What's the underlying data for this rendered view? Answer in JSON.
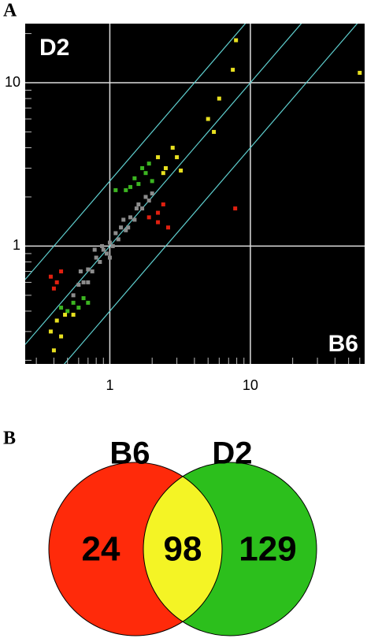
{
  "chart_data": [
    {
      "type": "scatter",
      "panel_label": "A",
      "log_x": true,
      "log_y": true,
      "grid": true,
      "xlim": [
        0.25,
        65
      ],
      "ylim": [
        0.19,
        23
      ],
      "xticks": [
        1,
        10
      ],
      "yticks": [
        1,
        10
      ],
      "xminorticks": [
        0.3,
        0.4,
        0.5,
        0.6,
        0.7,
        0.8,
        0.9,
        2,
        3,
        4,
        5,
        6,
        7,
        8,
        9,
        20,
        30,
        40,
        50,
        60
      ],
      "yminorticks": [
        0.2,
        0.3,
        0.4,
        0.5,
        0.6,
        0.7,
        0.8,
        0.9,
        2,
        3,
        4,
        5,
        6,
        7,
        8,
        9,
        20
      ],
      "ref_lines": [
        0.4,
        1,
        2.5
      ],
      "ref_line_color": "#5fd0d0",
      "corner_labels": [
        "D2",
        "B6"
      ],
      "series": [
        {
          "color": "#8c8c8c",
          "x": [
            0.55,
            0.6,
            0.65,
            0.7,
            0.75,
            0.8,
            0.85,
            0.9,
            0.95,
            1.0,
            1.05,
            1.1,
            1.15,
            1.2,
            1.3,
            1.4,
            1.5,
            1.6,
            1.7,
            1.8,
            1.9,
            2.0,
            0.7,
            1.0,
            1.25,
            0.62,
            0.88,
            1.35,
            1.55,
            0.78
          ],
          "y": [
            0.5,
            0.58,
            0.6,
            0.72,
            0.7,
            0.85,
            0.8,
            0.95,
            0.9,
            1.05,
            1.0,
            1.2,
            1.1,
            1.3,
            1.25,
            1.5,
            1.45,
            1.8,
            1.7,
            2.0,
            1.9,
            2.1,
            0.6,
            0.85,
            1.45,
            0.7,
            1.0,
            1.3,
            1.7,
            0.95
          ]
        },
        {
          "color": "#3cb521",
          "x": [
            1.3,
            1.5,
            1.7,
            1.6,
            1.9,
            2.0,
            1.4,
            1.8,
            1.1,
            0.55,
            0.6,
            0.65,
            0.5,
            0.7,
            0.45
          ],
          "y": [
            2.2,
            2.6,
            3.0,
            2.4,
            3.2,
            2.5,
            2.3,
            2.8,
            2.2,
            0.45,
            0.42,
            0.48,
            0.4,
            0.45,
            0.42
          ]
        },
        {
          "color": "#e8e020",
          "x": [
            2.2,
            2.5,
            2.8,
            3.0,
            2.4,
            3.2,
            5.0,
            6.0,
            7.5,
            7.9,
            5.5,
            0.42,
            0.48,
            0.38,
            0.55,
            0.4,
            0.45,
            60
          ],
          "y": [
            3.5,
            3.0,
            4.0,
            3.5,
            2.8,
            2.9,
            6.0,
            8.0,
            12.0,
            18.2,
            5.0,
            0.35,
            0.38,
            0.3,
            0.38,
            0.23,
            0.28,
            11.5
          ]
        },
        {
          "color": "#e02010",
          "x": [
            0.38,
            0.42,
            0.4,
            2.2,
            2.4,
            2.2,
            2.6,
            7.8,
            1.9,
            0.45
          ],
          "y": [
            0.65,
            0.6,
            0.55,
            1.6,
            1.8,
            1.4,
            1.3,
            1.7,
            1.5,
            0.7
          ]
        }
      ]
    },
    {
      "type": "venn",
      "panel_label": "B",
      "sets": [
        {
          "name": "B6",
          "color": "#ff2a0a"
        },
        {
          "name": "D2",
          "color": "#2cbf1c"
        }
      ],
      "overlap_color": "#f4f425",
      "values": [
        24,
        98,
        129
      ]
    }
  ]
}
